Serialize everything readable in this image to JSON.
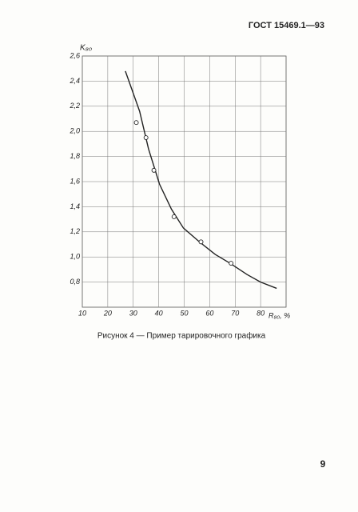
{
  "header": {
    "title": "ГОСТ 15469.1—93"
  },
  "chart_data": {
    "type": "scatter",
    "y_label": "K₈₀",
    "x_label": "R₈₀, %",
    "xlim": [
      10,
      90
    ],
    "xticks": [
      10,
      20,
      30,
      40,
      50,
      60,
      70,
      80
    ],
    "ylim": [
      0.6,
      2.6
    ],
    "yticks": [
      {
        "value": 0.8,
        "label": "0,8"
      },
      {
        "value": 1.0,
        "label": "1,0"
      },
      {
        "value": 1.2,
        "label": "1,2"
      },
      {
        "value": 1.4,
        "label": "1,4"
      },
      {
        "value": 1.6,
        "label": "1,6"
      },
      {
        "value": 1.8,
        "label": "1,8"
      },
      {
        "value": 2.0,
        "label": "2,0"
      },
      {
        "value": 2.2,
        "label": "2,2"
      },
      {
        "value": 2.4,
        "label": "2,4"
      },
      {
        "value": 2.6,
        "label": "2,6"
      }
    ],
    "grid": true,
    "color": "#222",
    "points": {
      "x": [
        31.2,
        35.0,
        38.1,
        46.0,
        56.6,
        68.4
      ],
      "values": [
        2.07,
        1.95,
        1.69,
        1.32,
        1.12,
        0.95
      ]
    },
    "curve": {
      "x": [
        26.9,
        32.5,
        36.0,
        40.3,
        45.0,
        49.7,
        56.0,
        62.2,
        68.0,
        74.7,
        80.0,
        86.3
      ],
      "values": [
        2.48,
        2.16,
        1.86,
        1.58,
        1.38,
        1.23,
        1.12,
        1.02,
        0.95,
        0.86,
        0.8,
        0.75
      ]
    }
  },
  "caption": "Рисунок 4 — Пример тарировочного графика",
  "page_number": "9"
}
